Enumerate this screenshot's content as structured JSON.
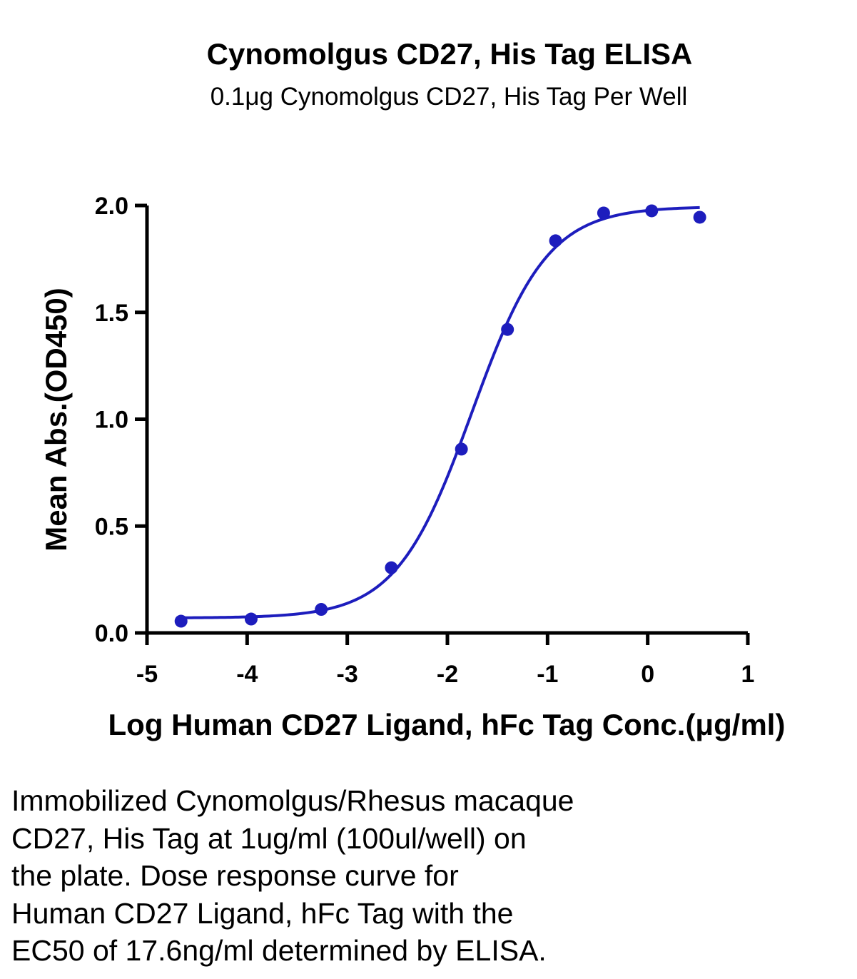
{
  "chart_data": {
    "type": "scatter",
    "title": "Cynomolgus CD27, His Tag ELISA",
    "subtitle": "0.1μg Cynomolgus CD27, His Tag Per Well",
    "xlabel": "Log Human CD27 Ligand, hFc Tag Conc.(μg/ml)",
    "ylabel": "Mean Abs.(OD450)",
    "xlim": [
      -5,
      1
    ],
    "ylim": [
      0,
      2.0
    ],
    "xticks": [
      "-5",
      "-4",
      "-3",
      "-2",
      "-1",
      "0",
      "1"
    ],
    "yticks": [
      "0.0",
      "0.5",
      "1.0",
      "1.5",
      "2.0"
    ],
    "grid": false,
    "colors": {
      "series": "#1d1dbd",
      "axis": "#000000"
    },
    "series": [
      {
        "x": [
          -4.66,
          -3.96,
          -3.26,
          -2.56,
          -1.86,
          -1.4,
          -0.92,
          -0.44,
          0.04,
          0.52
        ],
        "y": [
          0.055,
          0.065,
          0.11,
          0.305,
          0.86,
          1.42,
          1.835,
          1.965,
          1.975,
          1.945
        ],
        "fit": {
          "model": "4PL",
          "bottom": 0.07,
          "top": 1.995,
          "logEC50": -1.755,
          "hill": 1.15
        }
      }
    ]
  },
  "caption_lines": [
    "Immobilized Cynomolgus/Rhesus macaque",
    "CD27, His Tag at 1ug/ml (100ul/well) on",
    "the plate. Dose response curve for",
    "Human CD27 Ligand, hFc Tag with the",
    "EC50 of 17.6ng/ml determined by ELISA."
  ]
}
